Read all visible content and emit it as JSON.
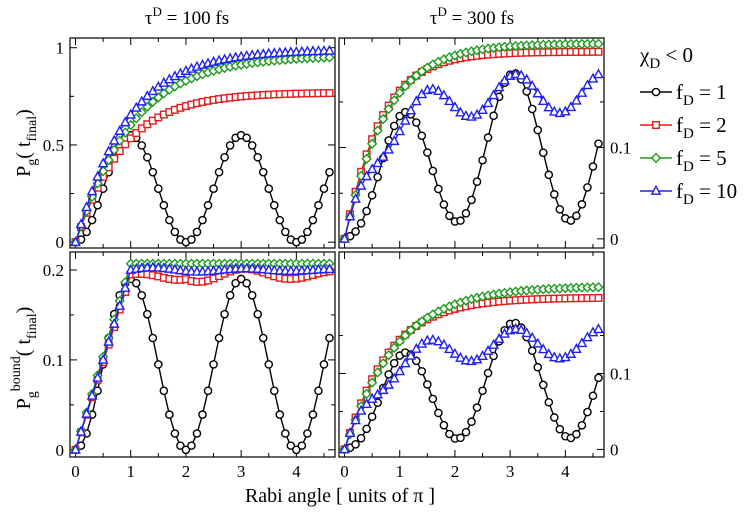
{
  "figure": {
    "col_titles": [
      {
        "sym": "τ",
        "sup": "D",
        "rest": " = 100 fs"
      },
      {
        "sym": "τ",
        "sup": "D",
        "rest": " = 300 fs"
      }
    ],
    "xlabel": "Rabi angle [ units of π ]",
    "ylabel_top": {
      "base": "P",
      "sub": "g",
      "open": "( t",
      "tsub": "final",
      "close": ")"
    },
    "ylabel_bottom": {
      "base": "P",
      "sub": "g",
      "sup": "bound",
      "open": "( t",
      "tsub": "final",
      "close": ")"
    },
    "legend_title": {
      "base": "χ",
      "sub": "D",
      "rest": " < 0"
    },
    "legend": [
      {
        "label_base": "f",
        "label_sub": "D",
        "label_rest": " =   1",
        "color": "#000000",
        "marker": "circle"
      },
      {
        "label_base": "f",
        "label_sub": "D",
        "label_rest": " =   2",
        "color": "#e41a1c",
        "marker": "square"
      },
      {
        "label_base": "f",
        "label_sub": "D",
        "label_rest": " =   5",
        "color": "#1f9a1f",
        "marker": "diamond"
      },
      {
        "label_base": "f",
        "label_sub": "D",
        "label_rest": " = 10",
        "color": "#2020ee",
        "marker": "triangle"
      }
    ]
  },
  "chart_data": [
    {
      "type": "line",
      "panel": "top-left",
      "xlim": [
        -0.1,
        4.7
      ],
      "ylim": [
        -0.03,
        1.05
      ],
      "xticks": [
        0,
        1,
        2,
        3,
        4
      ],
      "xticklabels": [
        "",
        "",
        "",
        "",
        ""
      ],
      "yticks": [
        0,
        0.5,
        1
      ],
      "yticklabels": [
        "0",
        "0.5",
        "1"
      ],
      "ytick_side": "left",
      "series": [
        {
          "name": "f_D = 1",
          "kind": "osc",
          "amp": 0.55,
          "tail": 0
        },
        {
          "name": "f_D = 2",
          "kind": "sat",
          "sat": 0.77,
          "k": 1.2,
          "extra": 0
        },
        {
          "name": "f_D = 5",
          "kind": "sat",
          "sat": 0.96,
          "k": 1.0,
          "extra": 0
        },
        {
          "name": "f_D = 10",
          "kind": "sat",
          "sat": 0.99,
          "k": 1.1,
          "extra": 0
        }
      ]
    },
    {
      "type": "line",
      "panel": "top-right",
      "xlim": [
        -0.1,
        4.7
      ],
      "ylim": [
        -0.01,
        0.22
      ],
      "xticks": [
        0,
        1,
        2,
        3,
        4
      ],
      "xticklabels": [
        "",
        "",
        "",
        "",
        ""
      ],
      "yticks": [
        0,
        0.1
      ],
      "yticklabels": [
        "0",
        "0.1"
      ],
      "ytick_side": "right",
      "series": [
        {
          "name": "f_D = 1",
          "kind": "osc2",
          "amp": 0.165,
          "base": 0.02
        },
        {
          "name": "f_D = 2",
          "kind": "sat",
          "sat": 0.205,
          "k": 1.6,
          "extra": 0
        },
        {
          "name": "f_D = 5",
          "kind": "sat",
          "sat": 0.214,
          "k": 1.4,
          "extra": 0
        },
        {
          "name": "f_D = 10",
          "kind": "wavy",
          "sat": 0.16,
          "k": 1.5,
          "amp": 0.022
        }
      ]
    },
    {
      "type": "line",
      "panel": "bottom-left",
      "xlim": [
        -0.1,
        4.7
      ],
      "ylim": [
        -0.008,
        0.22
      ],
      "xticks": [
        0,
        1,
        2,
        3,
        4
      ],
      "xticklabels": [
        "0",
        "1",
        "2",
        "3",
        "4"
      ],
      "yticks": [
        0,
        0.1,
        0.2
      ],
      "yticklabels": [
        "0",
        "0.1",
        "0.2"
      ],
      "ytick_side": "left",
      "series": [
        {
          "name": "f_D = 1",
          "kind": "osc",
          "amp": 0.19,
          "tail": 0
        },
        {
          "name": "f_D = 2",
          "kind": "linsat",
          "sat": 0.195,
          "wiggle": 0.012
        },
        {
          "name": "f_D = 5",
          "kind": "linsat",
          "sat": 0.207,
          "wiggle": 0.0
        },
        {
          "name": "f_D = 10",
          "kind": "linsat",
          "sat": 0.2,
          "wiggle": 0.003
        }
      ]
    },
    {
      "type": "line",
      "panel": "bottom-right",
      "xlim": [
        -0.1,
        4.7
      ],
      "ylim": [
        -0.01,
        0.26
      ],
      "xticks": [
        0,
        1,
        2,
        3,
        4
      ],
      "xticklabels": [
        "0",
        "1",
        "2",
        "3",
        "4"
      ],
      "yticks": [
        0,
        0.1
      ],
      "yticklabels": [
        "0",
        "0.1"
      ],
      "ytick_side": "right",
      "series": [
        {
          "name": "f_D = 1",
          "kind": "osc2",
          "amp": 0.155,
          "base": 0.015
        },
        {
          "name": "f_D = 2",
          "kind": "sat",
          "sat": 0.2,
          "k": 1.3,
          "extra": 0
        },
        {
          "name": "f_D = 5",
          "kind": "sat",
          "sat": 0.215,
          "k": 1.1,
          "extra": 0
        },
        {
          "name": "f_D = 10",
          "kind": "wavy",
          "sat": 0.14,
          "k": 1.5,
          "amp": 0.02
        }
      ]
    }
  ]
}
